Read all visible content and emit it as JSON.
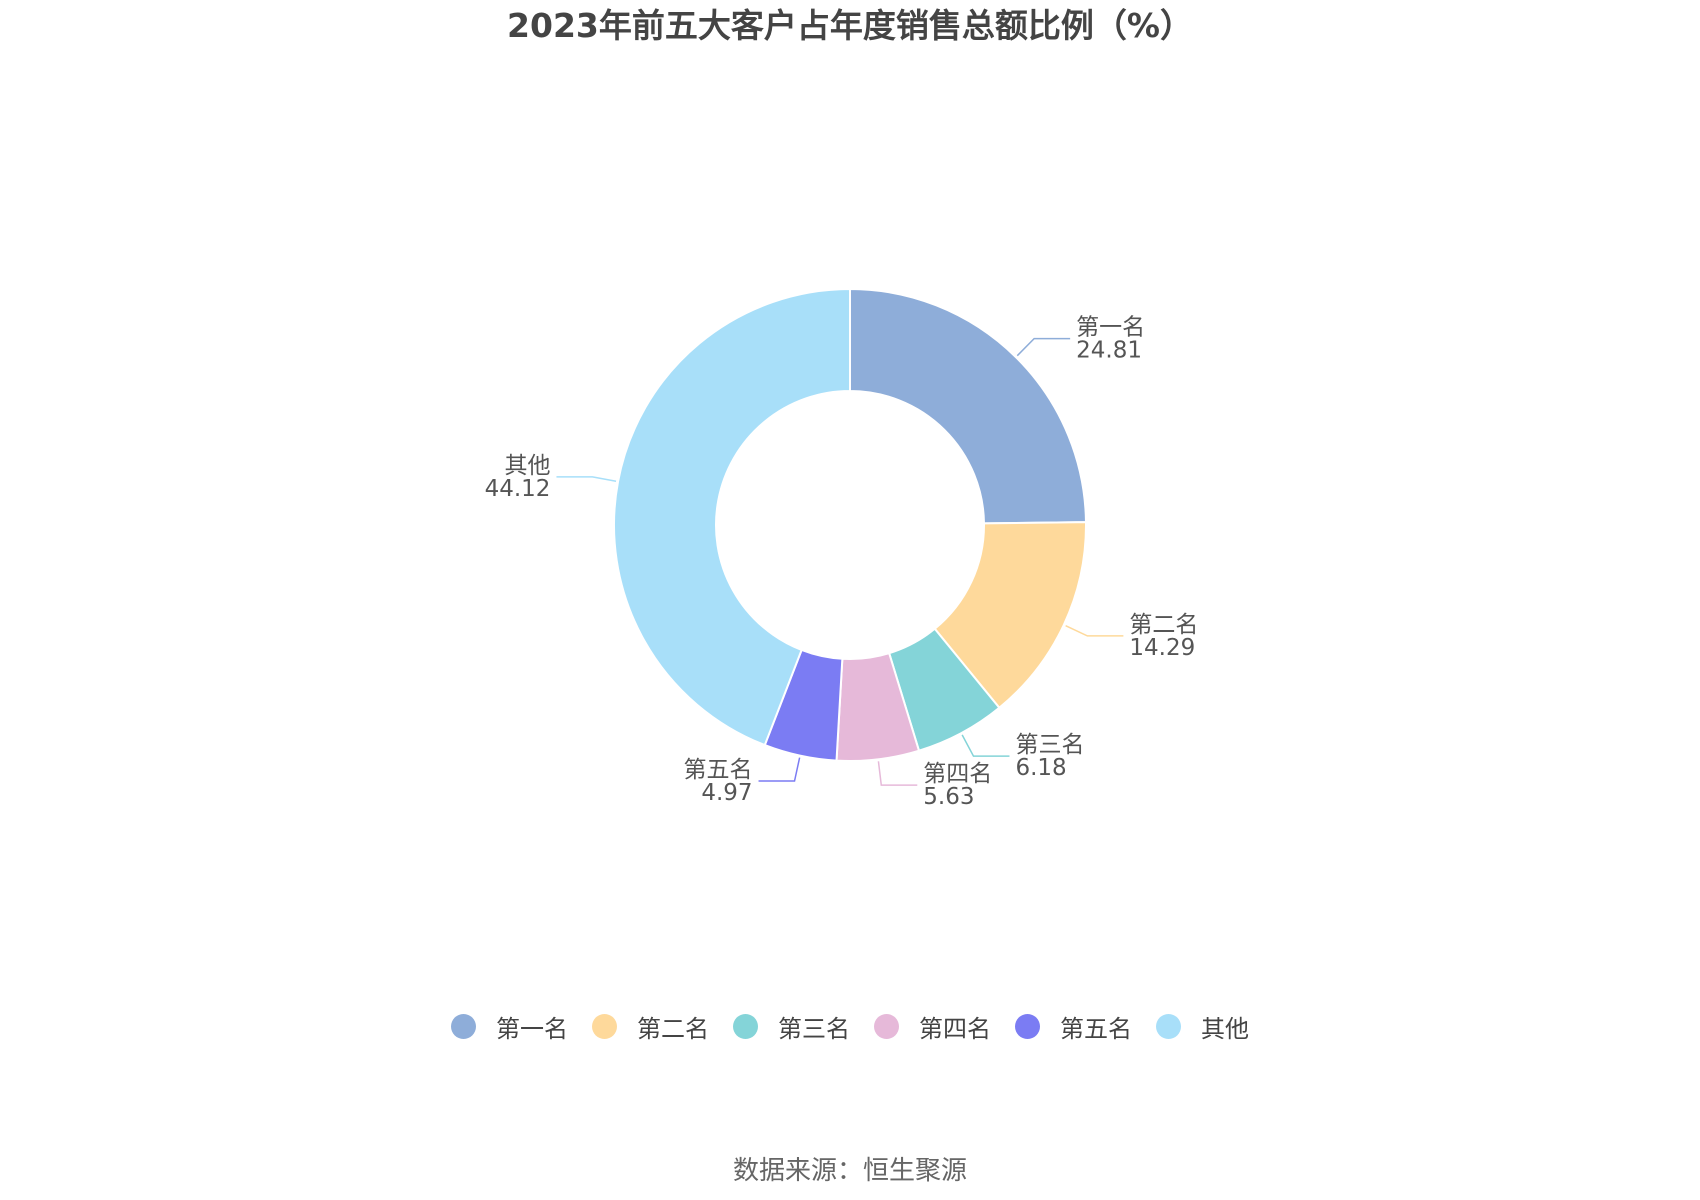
{
  "chart_data": {
    "type": "pie",
    "title": "2023年前五大客户占年度销售总额比例（%）",
    "donut": true,
    "categories": [
      "第一名",
      "第二名",
      "第三名",
      "第四名",
      "第五名",
      "其他"
    ],
    "values": [
      24.81,
      14.29,
      6.18,
      5.63,
      4.97,
      44.12
    ],
    "value_labels": [
      "24.81",
      "14.29",
      "6.18",
      "5.63",
      "4.97",
      "44.12"
    ],
    "colors": [
      "#8eadd9",
      "#fed99b",
      "#84d4d8",
      "#e6b9d9",
      "#7b7cf3",
      "#a8dff9"
    ],
    "legend": {
      "position": "bottom"
    }
  },
  "source": "数据来源：恒生聚源"
}
